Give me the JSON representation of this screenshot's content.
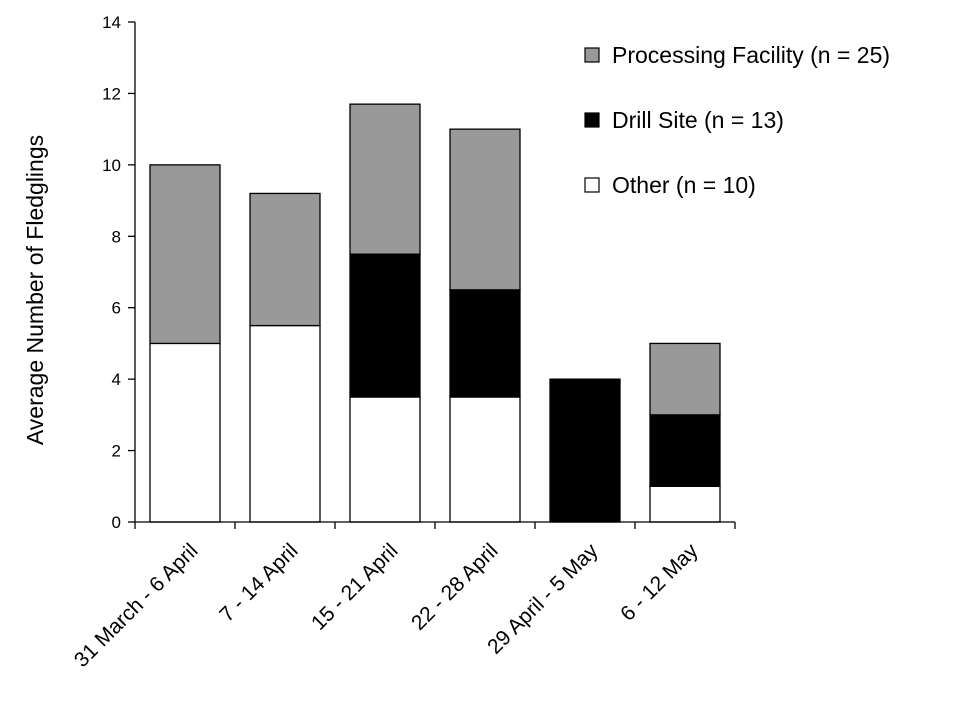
{
  "chart_data": {
    "type": "bar",
    "stacked": true,
    "title": "",
    "xlabel": "",
    "ylabel": "Average Number of Fledglings",
    "ylim": [
      0,
      14
    ],
    "yticks": [
      0,
      2,
      4,
      6,
      8,
      10,
      12,
      14
    ],
    "grid": false,
    "legend_position": "top-right",
    "categories": [
      "31 March - 6 April",
      "7 - 14 April",
      "15 - 21 April",
      "22 - 28 April",
      "29 April - 5 May",
      "6 - 12 May"
    ],
    "series": [
      {
        "name": "Other (n = 10)",
        "color": "#ffffff",
        "values": [
          5,
          5.5,
          3.5,
          3.5,
          0,
          1
        ]
      },
      {
        "name": "Drill Site (n = 13)",
        "color": "#000000",
        "values": [
          0,
          0,
          4,
          3,
          4,
          2
        ]
      },
      {
        "name": "Processing Facility (n = 25)",
        "color": "#999999",
        "values": [
          5,
          3.7,
          4.2,
          4.5,
          0,
          2
        ]
      }
    ],
    "legend_order": [
      "Processing Facility (n = 25)",
      "Drill Site (n = 13)",
      "Other (n = 10)"
    ]
  }
}
